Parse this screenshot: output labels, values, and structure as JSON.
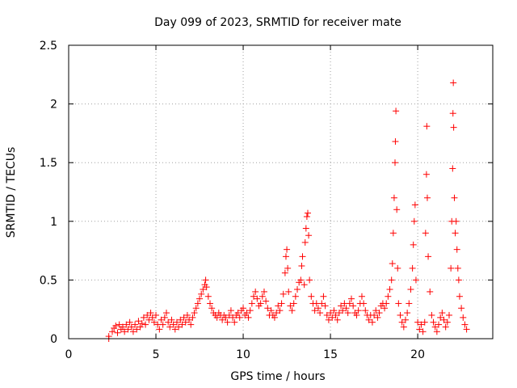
{
  "chart_data": {
    "type": "scatter",
    "title": "Day 099 of 2023, SRMTID for receiver mate",
    "xlabel": "GPS time / hours",
    "ylabel": "SRMTID / TECUs",
    "xlim": [
      0,
      24.3
    ],
    "ylim": [
      0,
      2.5
    ],
    "xticks": [
      0,
      5,
      10,
      15,
      20
    ],
    "xtick_labels": [
      "0",
      "5",
      "10",
      "15",
      "20"
    ],
    "yticks": [
      0,
      0.5,
      1,
      1.5,
      2,
      2.5
    ],
    "ytick_labels": [
      "0",
      "0.5",
      "1",
      "1.5",
      "2",
      "2.5"
    ],
    "grid": true,
    "marker": "+",
    "color": "#ff0000",
    "series": [
      {
        "name": "SRMTID",
        "points": [
          [
            2.3,
            0.0
          ],
          [
            2.3,
            0.02
          ],
          [
            2.5,
            0.06
          ],
          [
            2.6,
            0.09
          ],
          [
            2.7,
            0.11
          ],
          [
            2.8,
            0.05
          ],
          [
            2.9,
            0.12
          ],
          [
            3.0,
            0.08
          ],
          [
            3.1,
            0.1
          ],
          [
            3.2,
            0.06
          ],
          [
            3.3,
            0.12
          ],
          [
            3.4,
            0.08
          ],
          [
            3.5,
            0.14
          ],
          [
            3.6,
            0.1
          ],
          [
            3.7,
            0.06
          ],
          [
            3.8,
            0.12
          ],
          [
            3.9,
            0.08
          ],
          [
            4.0,
            0.15
          ],
          [
            4.1,
            0.1
          ],
          [
            4.2,
            0.13
          ],
          [
            4.3,
            0.18
          ],
          [
            4.4,
            0.12
          ],
          [
            4.5,
            0.2
          ],
          [
            4.6,
            0.16
          ],
          [
            4.7,
            0.22
          ],
          [
            4.8,
            0.18
          ],
          [
            4.9,
            0.14
          ],
          [
            5.0,
            0.2
          ],
          [
            5.1,
            0.12
          ],
          [
            5.2,
            0.08
          ],
          [
            5.3,
            0.16
          ],
          [
            5.4,
            0.12
          ],
          [
            5.5,
            0.18
          ],
          [
            5.6,
            0.22
          ],
          [
            5.7,
            0.14
          ],
          [
            5.8,
            0.1
          ],
          [
            5.9,
            0.16
          ],
          [
            6.0,
            0.12
          ],
          [
            6.1,
            0.08
          ],
          [
            6.2,
            0.14
          ],
          [
            6.3,
            0.1
          ],
          [
            6.4,
            0.16
          ],
          [
            6.5,
            0.12
          ],
          [
            6.6,
            0.18
          ],
          [
            6.7,
            0.14
          ],
          [
            6.8,
            0.2
          ],
          [
            6.9,
            0.16
          ],
          [
            7.0,
            0.12
          ],
          [
            7.1,
            0.18
          ],
          [
            7.2,
            0.22
          ],
          [
            7.3,
            0.26
          ],
          [
            7.4,
            0.3
          ],
          [
            7.5,
            0.34
          ],
          [
            7.6,
            0.38
          ],
          [
            7.7,
            0.42
          ],
          [
            7.8,
            0.46
          ],
          [
            7.85,
            0.5
          ],
          [
            7.9,
            0.44
          ],
          [
            8.0,
            0.36
          ],
          [
            8.1,
            0.3
          ],
          [
            8.2,
            0.26
          ],
          [
            8.3,
            0.22
          ],
          [
            8.4,
            0.2
          ],
          [
            8.5,
            0.18
          ],
          [
            8.6,
            0.22
          ],
          [
            8.7,
            0.2
          ],
          [
            8.8,
            0.16
          ],
          [
            8.9,
            0.2
          ],
          [
            9.0,
            0.18
          ],
          [
            9.1,
            0.14
          ],
          [
            9.2,
            0.2
          ],
          [
            9.3,
            0.24
          ],
          [
            9.4,
            0.18
          ],
          [
            9.5,
            0.14
          ],
          [
            9.6,
            0.2
          ],
          [
            9.7,
            0.22
          ],
          [
            9.8,
            0.18
          ],
          [
            9.9,
            0.24
          ],
          [
            10.0,
            0.26
          ],
          [
            10.1,
            0.2
          ],
          [
            10.2,
            0.22
          ],
          [
            10.3,
            0.18
          ],
          [
            10.4,
            0.24
          ],
          [
            10.5,
            0.3
          ],
          [
            10.6,
            0.36
          ],
          [
            10.7,
            0.4
          ],
          [
            10.8,
            0.34
          ],
          [
            10.9,
            0.28
          ],
          [
            11.0,
            0.3
          ],
          [
            11.1,
            0.36
          ],
          [
            11.2,
            0.4
          ],
          [
            11.3,
            0.32
          ],
          [
            11.4,
            0.26
          ],
          [
            11.5,
            0.2
          ],
          [
            11.6,
            0.24
          ],
          [
            11.7,
            0.2
          ],
          [
            11.8,
            0.18
          ],
          [
            11.9,
            0.22
          ],
          [
            12.0,
            0.28
          ],
          [
            12.1,
            0.24
          ],
          [
            12.2,
            0.3
          ],
          [
            12.3,
            0.38
          ],
          [
            12.4,
            0.56
          ],
          [
            12.45,
            0.7
          ],
          [
            12.5,
            0.76
          ],
          [
            12.55,
            0.6
          ],
          [
            12.6,
            0.4
          ],
          [
            12.7,
            0.28
          ],
          [
            12.8,
            0.24
          ],
          [
            12.9,
            0.3
          ],
          [
            13.0,
            0.36
          ],
          [
            13.1,
            0.42
          ],
          [
            13.2,
            0.48
          ],
          [
            13.3,
            0.5
          ],
          [
            13.35,
            0.62
          ],
          [
            13.4,
            0.7
          ],
          [
            13.5,
            0.46
          ],
          [
            13.55,
            0.82
          ],
          [
            13.6,
            0.94
          ],
          [
            13.65,
            1.04
          ],
          [
            13.7,
            1.07
          ],
          [
            13.75,
            0.88
          ],
          [
            13.8,
            0.5
          ],
          [
            13.9,
            0.36
          ],
          [
            14.0,
            0.3
          ],
          [
            14.1,
            0.24
          ],
          [
            14.2,
            0.3
          ],
          [
            14.3,
            0.26
          ],
          [
            14.4,
            0.22
          ],
          [
            14.5,
            0.3
          ],
          [
            14.6,
            0.36
          ],
          [
            14.7,
            0.28
          ],
          [
            14.8,
            0.2
          ],
          [
            14.9,
            0.16
          ],
          [
            15.0,
            0.22
          ],
          [
            15.1,
            0.18
          ],
          [
            15.2,
            0.24
          ],
          [
            15.3,
            0.2
          ],
          [
            15.4,
            0.16
          ],
          [
            15.5,
            0.22
          ],
          [
            15.6,
            0.28
          ],
          [
            15.7,
            0.24
          ],
          [
            15.8,
            0.3
          ],
          [
            15.9,
            0.26
          ],
          [
            16.0,
            0.22
          ],
          [
            16.1,
            0.3
          ],
          [
            16.2,
            0.34
          ],
          [
            16.3,
            0.28
          ],
          [
            16.4,
            0.22
          ],
          [
            16.5,
            0.2
          ],
          [
            16.6,
            0.24
          ],
          [
            16.7,
            0.3
          ],
          [
            16.8,
            0.36
          ],
          [
            16.9,
            0.3
          ],
          [
            17.0,
            0.24
          ],
          [
            17.1,
            0.2
          ],
          [
            17.2,
            0.16
          ],
          [
            17.3,
            0.2
          ],
          [
            17.4,
            0.14
          ],
          [
            17.5,
            0.2
          ],
          [
            17.6,
            0.24
          ],
          [
            17.7,
            0.18
          ],
          [
            17.8,
            0.22
          ],
          [
            17.9,
            0.28
          ],
          [
            18.0,
            0.3
          ],
          [
            18.1,
            0.26
          ],
          [
            18.2,
            0.3
          ],
          [
            18.3,
            0.36
          ],
          [
            18.4,
            0.42
          ],
          [
            18.5,
            0.5
          ],
          [
            18.55,
            0.64
          ],
          [
            18.6,
            0.9
          ],
          [
            18.65,
            1.2
          ],
          [
            18.7,
            1.5
          ],
          [
            18.72,
            1.68
          ],
          [
            18.75,
            1.94
          ],
          [
            18.8,
            1.1
          ],
          [
            18.85,
            0.6
          ],
          [
            18.9,
            0.3
          ],
          [
            19.0,
            0.2
          ],
          [
            19.1,
            0.14
          ],
          [
            19.2,
            0.1
          ],
          [
            19.3,
            0.16
          ],
          [
            19.4,
            0.22
          ],
          [
            19.5,
            0.3
          ],
          [
            19.6,
            0.42
          ],
          [
            19.7,
            0.6
          ],
          [
            19.75,
            0.8
          ],
          [
            19.8,
            1.0
          ],
          [
            19.85,
            1.14
          ],
          [
            19.9,
            0.5
          ],
          [
            20.0,
            0.14
          ],
          [
            20.1,
            0.08
          ],
          [
            20.2,
            0.12
          ],
          [
            20.3,
            0.06
          ],
          [
            20.4,
            0.14
          ],
          [
            20.45,
            0.9
          ],
          [
            20.5,
            1.4
          ],
          [
            20.52,
            1.81
          ],
          [
            20.55,
            1.2
          ],
          [
            20.6,
            0.7
          ],
          [
            20.7,
            0.4
          ],
          [
            20.8,
            0.2
          ],
          [
            20.9,
            0.14
          ],
          [
            21.0,
            0.1
          ],
          [
            21.1,
            0.06
          ],
          [
            21.2,
            0.12
          ],
          [
            21.3,
            0.18
          ],
          [
            21.4,
            0.22
          ],
          [
            21.5,
            0.16
          ],
          [
            21.6,
            0.1
          ],
          [
            21.7,
            0.14
          ],
          [
            21.8,
            0.2
          ],
          [
            21.9,
            0.6
          ],
          [
            21.95,
            1.0
          ],
          [
            22.0,
            1.45
          ],
          [
            22.02,
            1.92
          ],
          [
            22.04,
            2.18
          ],
          [
            22.06,
            1.8
          ],
          [
            22.1,
            1.2
          ],
          [
            22.15,
            0.9
          ],
          [
            22.2,
            1.0
          ],
          [
            22.25,
            0.76
          ],
          [
            22.3,
            0.6
          ],
          [
            22.35,
            0.5
          ],
          [
            22.4,
            0.36
          ],
          [
            22.5,
            0.26
          ],
          [
            22.6,
            0.18
          ],
          [
            22.7,
            0.12
          ],
          [
            22.8,
            0.08
          ]
        ]
      }
    ]
  }
}
